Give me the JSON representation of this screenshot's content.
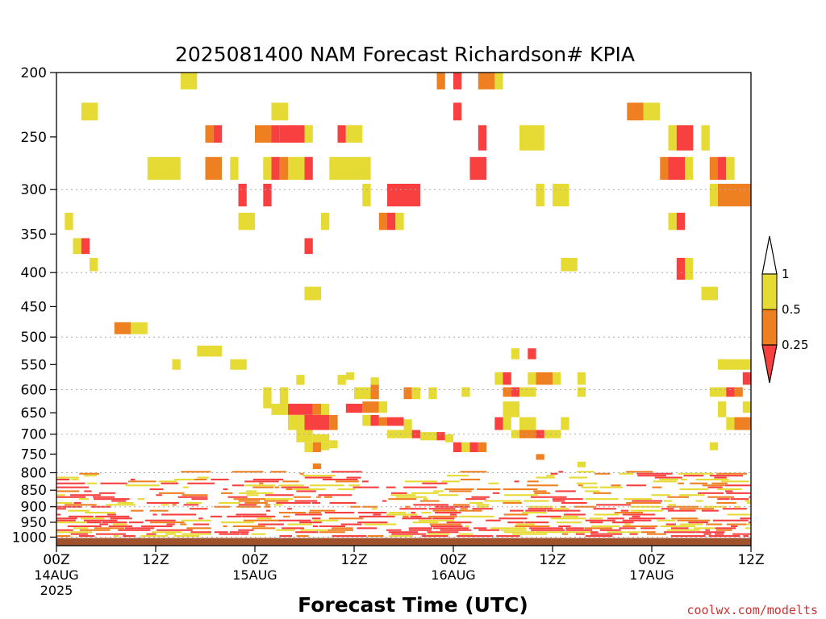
{
  "colors": {
    "ri_0_025": "#f84040",
    "ri_025_05": "#ee8022",
    "ri_05_1": "#e6da34",
    "ground": "#a0522d",
    "gridline": "#aaaaaa"
  },
  "chart_data": {
    "type": "heatmap",
    "title": "2025081400 NAM Forecast Richardson# KPIA",
    "xlabel": "Forecast Time (UTC)",
    "ylabel": "",
    "y_scale": "log-pressure",
    "ylim": [
      1030,
      200
    ],
    "xlim_hours": [
      0,
      84
    ],
    "y_ticks": [
      200,
      250,
      300,
      350,
      400,
      450,
      500,
      550,
      600,
      650,
      700,
      750,
      800,
      850,
      900,
      950,
      1000
    ],
    "gridlines_at": [
      300,
      400,
      500,
      600,
      700,
      800,
      900,
      1000
    ],
    "x_ticks": [
      {
        "hour": 0,
        "label": "00Z",
        "date": "14AUG",
        "year": "2025"
      },
      {
        "hour": 12,
        "label": "12Z"
      },
      {
        "hour": 24,
        "label": "00Z",
        "date": "15AUG"
      },
      {
        "hour": 36,
        "label": "12Z"
      },
      {
        "hour": 48,
        "label": "00Z",
        "date": "16AUG"
      },
      {
        "hour": 60,
        "label": "12Z"
      },
      {
        "hour": 72,
        "label": "00Z",
        "date": "17AUG"
      },
      {
        "hour": 84,
        "label": "12Z"
      }
    ],
    "colorbar": {
      "levels": [
        "1",
        "0.5",
        "0.25"
      ],
      "bins": [
        {
          "range": [
            0.5,
            1
          ],
          "color": "#e6da34"
        },
        {
          "range": [
            0.25,
            0.5
          ],
          "color": "#ee8022"
        },
        {
          "range": [
            0,
            0.25
          ],
          "color": "#f84040"
        }
      ]
    },
    "ground_layer_hpa": [
      1003,
      1030
    ],
    "cells": [
      [
        15,
        17,
        200,
        212,
        2
      ],
      [
        46,
        47,
        200,
        212,
        1
      ],
      [
        48,
        49,
        200,
        212,
        0
      ],
      [
        51,
        53,
        200,
        212,
        1
      ],
      [
        53,
        54,
        200,
        212,
        2
      ],
      [
        3,
        5,
        222,
        236,
        2
      ],
      [
        26,
        28,
        222,
        236,
        2
      ],
      [
        69,
        71,
        222,
        236,
        1
      ],
      [
        71,
        73,
        222,
        236,
        2
      ],
      [
        48,
        49,
        222,
        236,
        0
      ],
      [
        18,
        19,
        240,
        255,
        1
      ],
      [
        19,
        20,
        240,
        255,
        0
      ],
      [
        24,
        26,
        240,
        255,
        1
      ],
      [
        26,
        27,
        240,
        255,
        0
      ],
      [
        27,
        30,
        240,
        255,
        0
      ],
      [
        30,
        31,
        240,
        255,
        2
      ],
      [
        34,
        35,
        240,
        255,
        0
      ],
      [
        35,
        37,
        240,
        255,
        2
      ],
      [
        51,
        52,
        240,
        262,
        0
      ],
      [
        56,
        59,
        240,
        262,
        2
      ],
      [
        74,
        75,
        240,
        262,
        2
      ],
      [
        75,
        77,
        240,
        262,
        0
      ],
      [
        78,
        79,
        240,
        262,
        2
      ],
      [
        11,
        15,
        268,
        290,
        2
      ],
      [
        18,
        20,
        268,
        290,
        1
      ],
      [
        21,
        22,
        268,
        290,
        2
      ],
      [
        25,
        26,
        268,
        290,
        2
      ],
      [
        26,
        27,
        268,
        290,
        0
      ],
      [
        27,
        28,
        268,
        290,
        1
      ],
      [
        28,
        30,
        268,
        290,
        2
      ],
      [
        30,
        31,
        268,
        290,
        0
      ],
      [
        33,
        38,
        268,
        290,
        2
      ],
      [
        50,
        52,
        268,
        290,
        0
      ],
      [
        73,
        74,
        268,
        290,
        1
      ],
      [
        74,
        76,
        268,
        290,
        0
      ],
      [
        76,
        77,
        268,
        290,
        2
      ],
      [
        79,
        80,
        268,
        290,
        1
      ],
      [
        80,
        81,
        268,
        290,
        0
      ],
      [
        81,
        82,
        268,
        290,
        2
      ],
      [
        22,
        23,
        294,
        318,
        0
      ],
      [
        25,
        26,
        294,
        318,
        0
      ],
      [
        37,
        38,
        294,
        318,
        2
      ],
      [
        40,
        44,
        294,
        318,
        0
      ],
      [
        58,
        59,
        294,
        318,
        2
      ],
      [
        60,
        62,
        294,
        318,
        2
      ],
      [
        79,
        80,
        294,
        318,
        2
      ],
      [
        80,
        84,
        294,
        318,
        1
      ],
      [
        1,
        2,
        325,
        345,
        2
      ],
      [
        22,
        24,
        325,
        345,
        2
      ],
      [
        39,
        40,
        325,
        345,
        1
      ],
      [
        40,
        41,
        325,
        345,
        0
      ],
      [
        41,
        42,
        325,
        345,
        2
      ],
      [
        32,
        33,
        325,
        345,
        2
      ],
      [
        74,
        75,
        325,
        345,
        2
      ],
      [
        75,
        76,
        325,
        345,
        0
      ],
      [
        2,
        3,
        355,
        375,
        2
      ],
      [
        3,
        4,
        355,
        375,
        0
      ],
      [
        30,
        31,
        355,
        375,
        0
      ],
      [
        4,
        5,
        380,
        398,
        2
      ],
      [
        61,
        63,
        380,
        398,
        2
      ],
      [
        75,
        76,
        380,
        410,
        0
      ],
      [
        76,
        77,
        380,
        410,
        2
      ],
      [
        30,
        32,
        420,
        440,
        2
      ],
      [
        78,
        80,
        420,
        440,
        2
      ],
      [
        7,
        9,
        475,
        495,
        1
      ],
      [
        9,
        11,
        475,
        495,
        2
      ],
      [
        17,
        20,
        515,
        535,
        2
      ],
      [
        14,
        15,
        540,
        560,
        2
      ],
      [
        21,
        23,
        540,
        560,
        2
      ],
      [
        55,
        56,
        520,
        540,
        2
      ],
      [
        57,
        58,
        520,
        540,
        0
      ],
      [
        80,
        84,
        540,
        560,
        2
      ],
      [
        29,
        30,
        570,
        590,
        2
      ],
      [
        34,
        35,
        570,
        590,
        2
      ],
      [
        35,
        36,
        565,
        580,
        2
      ],
      [
        38,
        39,
        575,
        590,
        2
      ],
      [
        53,
        54,
        565,
        590,
        2
      ],
      [
        54,
        55,
        565,
        590,
        0
      ],
      [
        57,
        58,
        565,
        590,
        2
      ],
      [
        58,
        60,
        565,
        590,
        1
      ],
      [
        60,
        61,
        565,
        590,
        2
      ],
      [
        63,
        64,
        565,
        590,
        2
      ],
      [
        83,
        84,
        565,
        590,
        0
      ],
      [
        25,
        26,
        595,
        640,
        2
      ],
      [
        27,
        28,
        595,
        640,
        2
      ],
      [
        36,
        38,
        595,
        620,
        2
      ],
      [
        38,
        39,
        590,
        620,
        1
      ],
      [
        42,
        43,
        595,
        620,
        1
      ],
      [
        43,
        44,
        595,
        620,
        2
      ],
      [
        45,
        46,
        595,
        620,
        2
      ],
      [
        49,
        50,
        595,
        615,
        2
      ],
      [
        54,
        55,
        595,
        615,
        1
      ],
      [
        55,
        56,
        595,
        615,
        0
      ],
      [
        56,
        58,
        595,
        615,
        2
      ],
      [
        63,
        64,
        595,
        615,
        2
      ],
      [
        79,
        81,
        595,
        615,
        2
      ],
      [
        81,
        82,
        595,
        615,
        0
      ],
      [
        82,
        83,
        595,
        615,
        1
      ],
      [
        26,
        28,
        630,
        655,
        2
      ],
      [
        28,
        31,
        630,
        655,
        0
      ],
      [
        31,
        32,
        630,
        655,
        1
      ],
      [
        32,
        33,
        630,
        660,
        2
      ],
      [
        35,
        37,
        630,
        650,
        0
      ],
      [
        37,
        39,
        625,
        650,
        1
      ],
      [
        39,
        40,
        625,
        650,
        2
      ],
      [
        54,
        56,
        625,
        660,
        2
      ],
      [
        80,
        81,
        625,
        660,
        2
      ],
      [
        83,
        84,
        625,
        650,
        2
      ],
      [
        28,
        30,
        655,
        690,
        2
      ],
      [
        30,
        33,
        655,
        690,
        0
      ],
      [
        33,
        34,
        655,
        690,
        1
      ],
      [
        37,
        38,
        655,
        680,
        2
      ],
      [
        38,
        39,
        655,
        680,
        0
      ],
      [
        39,
        40,
        660,
        680,
        1
      ],
      [
        40,
        42,
        660,
        680,
        0
      ],
      [
        42,
        43,
        665,
        690,
        2
      ],
      [
        53,
        54,
        660,
        690,
        0
      ],
      [
        54,
        55,
        660,
        690,
        2
      ],
      [
        56,
        58,
        660,
        690,
        2
      ],
      [
        61,
        62,
        660,
        690,
        2
      ],
      [
        81,
        82,
        660,
        690,
        2
      ],
      [
        82,
        84,
        660,
        690,
        1
      ],
      [
        29,
        31,
        690,
        720,
        2
      ],
      [
        31,
        33,
        700,
        720,
        2
      ],
      [
        40,
        41,
        690,
        710,
        2
      ],
      [
        41,
        43,
        690,
        710,
        2
      ],
      [
        43,
        44,
        690,
        710,
        0
      ],
      [
        44,
        46,
        695,
        715,
        2
      ],
      [
        46,
        47,
        695,
        715,
        0
      ],
      [
        47,
        48,
        700,
        720,
        2
      ],
      [
        55,
        56,
        690,
        710,
        2
      ],
      [
        56,
        58,
        690,
        710,
        1
      ],
      [
        58,
        59,
        690,
        710,
        0
      ],
      [
        59,
        61,
        690,
        710,
        2
      ],
      [
        30,
        31,
        720,
        745,
        2
      ],
      [
        31,
        32,
        720,
        745,
        1
      ],
      [
        32,
        33,
        720,
        740,
        2
      ],
      [
        33,
        34,
        715,
        735,
        2
      ],
      [
        48,
        49,
        720,
        745,
        0
      ],
      [
        49,
        50,
        720,
        745,
        2
      ],
      [
        50,
        51,
        720,
        745,
        0
      ],
      [
        51,
        52,
        720,
        745,
        1
      ],
      [
        79,
        80,
        720,
        740,
        2
      ],
      [
        31,
        32,
        775,
        790,
        1
      ],
      [
        58,
        59,
        750,
        765,
        1
      ],
      [
        63,
        64,
        770,
        785,
        2
      ]
    ],
    "low_level_band_hpa": [
      795,
      1000
    ]
  }
}
